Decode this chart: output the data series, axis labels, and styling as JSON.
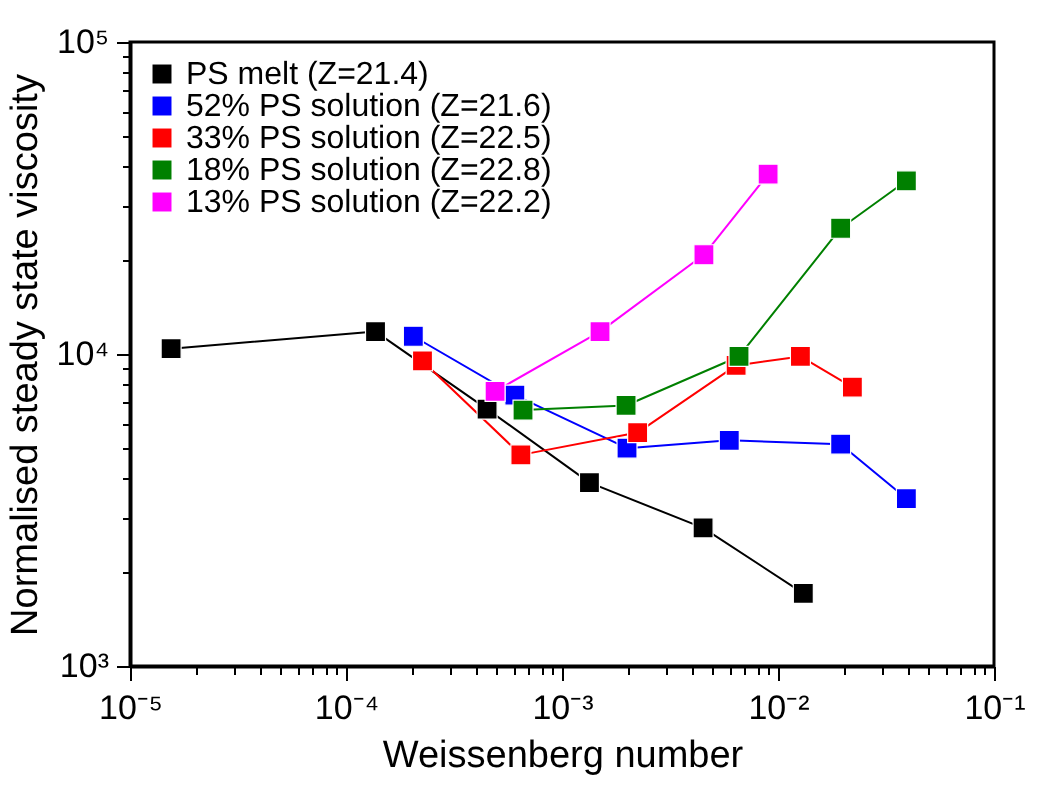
{
  "chart_data": {
    "type": "line",
    "xlabel": "Weissenberg number",
    "ylabel": "Normalised steady state viscosity",
    "log": "xy",
    "grid": false,
    "legend": "top left",
    "marker": "square",
    "line_style": "solid",
    "xlim": [
      1e-05,
      0.1
    ],
    "ylim": [
      1000,
      100000
    ],
    "xticks": [
      {
        "value": 1e-05,
        "label": "10⁻⁵"
      },
      {
        "value": 2e-05,
        "label": null
      },
      {
        "value": 3e-05,
        "label": null
      },
      {
        "value": 4e-05,
        "label": null
      },
      {
        "value": 5e-05,
        "label": null
      },
      {
        "value": 6e-05,
        "label": null
      },
      {
        "value": 7e-05,
        "label": null
      },
      {
        "value": 8e-05,
        "label": null
      },
      {
        "value": 9e-05,
        "label": null
      },
      {
        "value": 0.0001,
        "label": "10⁻⁴"
      },
      {
        "value": 0.0002,
        "label": null
      },
      {
        "value": 0.0003,
        "label": null
      },
      {
        "value": 0.0004,
        "label": null
      },
      {
        "value": 0.0005,
        "label": null
      },
      {
        "value": 0.0006,
        "label": null
      },
      {
        "value": 0.0007,
        "label": null
      },
      {
        "value": 0.0008,
        "label": null
      },
      {
        "value": 0.0009,
        "label": null
      },
      {
        "value": 0.001,
        "label": "10⁻³"
      },
      {
        "value": 0.002,
        "label": null
      },
      {
        "value": 0.003,
        "label": null
      },
      {
        "value": 0.004,
        "label": null
      },
      {
        "value": 0.005,
        "label": null
      },
      {
        "value": 0.006,
        "label": null
      },
      {
        "value": 0.007,
        "label": null
      },
      {
        "value": 0.008,
        "label": null
      },
      {
        "value": 0.009,
        "label": null
      },
      {
        "value": 0.01,
        "label": "10⁻²"
      },
      {
        "value": 0.02,
        "label": null
      },
      {
        "value": 0.03,
        "label": null
      },
      {
        "value": 0.04,
        "label": null
      },
      {
        "value": 0.05,
        "label": null
      },
      {
        "value": 0.06,
        "label": null
      },
      {
        "value": 0.07,
        "label": null
      },
      {
        "value": 0.08,
        "label": null
      },
      {
        "value": 0.09,
        "label": null
      },
      {
        "value": 0.1,
        "label": "10⁻¹"
      }
    ],
    "yticks": [
      {
        "value": 1000,
        "label": "10³"
      },
      {
        "value": 2000,
        "label": null
      },
      {
        "value": 3000,
        "label": null
      },
      {
        "value": 4000,
        "label": null
      },
      {
        "value": 5000,
        "label": null
      },
      {
        "value": 6000,
        "label": null
      },
      {
        "value": 7000,
        "label": null
      },
      {
        "value": 8000,
        "label": null
      },
      {
        "value": 9000,
        "label": null
      },
      {
        "value": 10000,
        "label": "10⁴"
      },
      {
        "value": 20000,
        "label": null
      },
      {
        "value": 30000,
        "label": null
      },
      {
        "value": 40000,
        "label": null
      },
      {
        "value": 50000,
        "label": null
      },
      {
        "value": 60000,
        "label": null
      },
      {
        "value": 70000,
        "label": null
      },
      {
        "value": 80000,
        "label": null
      },
      {
        "value": 90000,
        "label": null
      },
      {
        "value": 100000,
        "label": "10⁵"
      }
    ],
    "series": [
      {
        "name": "PS melt (Z=21.4)",
        "color": "#000000",
        "x": [
          1.55e-05,
          0.000137,
          0.00045,
          0.00134,
          0.0045,
          0.0131
        ],
        "values": [
          10400,
          11800,
          6660,
          3870,
          2770,
          1710
        ]
      },
      {
        "name": "52% PS solution (Z=21.6)",
        "color": "#0000ff",
        "x": [
          0.000205,
          0.000605,
          0.002,
          0.00595,
          0.0195,
          0.0393
        ],
        "values": [
          11400,
          7380,
          4990,
          5290,
          5140,
          3440
        ]
      },
      {
        "name": "33% PS solution (Z=22.5)",
        "color": "#ff0000",
        "x": [
          0.000226,
          0.000645,
          0.00224,
          0.0064,
          0.0127,
          0.0221
        ],
        "values": [
          9500,
          4750,
          5600,
          9190,
          9820,
          7830
        ]
      },
      {
        "name": "18% PS solution (Z=22.8)",
        "color": "#008000",
        "x": [
          0.00066,
          0.00198,
          0.0066,
          0.0195,
          0.0393
        ],
        "values": [
          6610,
          6840,
          9820,
          25300,
          35900
        ]
      },
      {
        "name": "13% PS solution (Z=22.2)",
        "color": "#ff00ff",
        "x": [
          0.00049,
          0.0015,
          0.00454,
          0.009
        ],
        "values": [
          7590,
          11800,
          20800,
          37700
        ]
      }
    ]
  }
}
